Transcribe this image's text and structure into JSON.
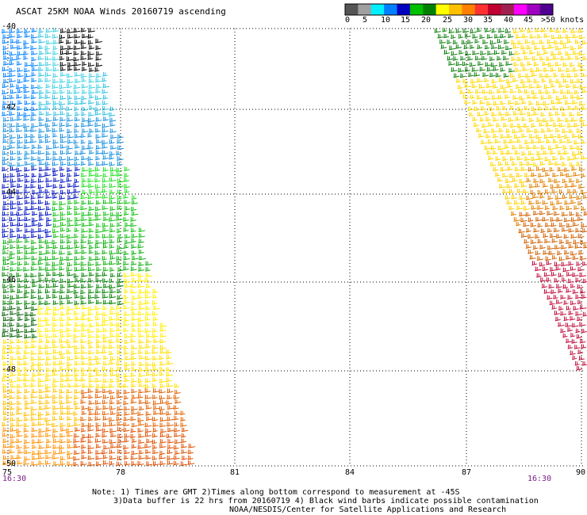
{
  "title": "ASCAT 25KM NOAA Winds 20160719 ascending",
  "legend": {
    "colors": [
      "#555555",
      "#a0a0a0",
      "#00f0ff",
      "#0080ff",
      "#0000c0",
      "#00c000",
      "#008000",
      "#ffff00",
      "#ffc000",
      "#ff8000",
      "#ff3030",
      "#c00030",
      "#a02050",
      "#ff00ff",
      "#a000c0",
      "#500090"
    ],
    "ticks": [
      "0",
      "5",
      "10",
      "15",
      "20",
      "25",
      "30",
      "35",
      "40",
      "45",
      ">50 knots"
    ]
  },
  "map": {
    "lat_labels": [
      "-40",
      "-42",
      "-44",
      "-46",
      "-48",
      "-50"
    ],
    "lon_labels": [
      "75",
      "78",
      "81",
      "84",
      "87",
      "90"
    ],
    "time_labels": [
      "16:30",
      "16:30"
    ]
  },
  "notes": [
    "Note: 1) Times are GMT 2)Times along bottom correspond to measurement at -45S",
    "3)Data buffer is 22 hrs from 20160719 4) Black wind barbs indicate possible contamination",
    "NOAA/NESDIS/Center for Satellite Applications and Research"
  ]
}
